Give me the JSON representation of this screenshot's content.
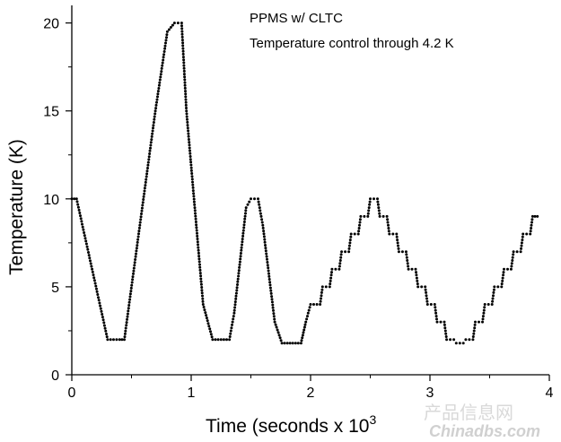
{
  "chart_data": {
    "type": "scatter",
    "title": "",
    "xlabel": "Time (seconds x 10",
    "xlabel_superscript": "3",
    "ylabel": "Temperature (K)",
    "xlim": [
      0,
      4
    ],
    "ylim": [
      0,
      21
    ],
    "xticks": [
      "0",
      "1",
      "2",
      "3",
      "4"
    ],
    "yticks": [
      "0",
      "5",
      "10",
      "15",
      "20"
    ],
    "grid": false,
    "legend": "none",
    "annotations": [
      "PPMS w/ CLTC",
      "Temperature control through 4.2 K"
    ],
    "marker_color": "#000000",
    "series": [
      {
        "x": [
          0.0,
          0.04,
          0.3,
          0.4,
          0.44,
          0.7,
          0.8,
          0.86,
          0.92,
          0.96,
          1.1,
          1.18,
          1.32,
          1.36,
          1.46,
          1.5,
          1.56,
          1.6,
          1.7,
          1.76,
          1.92,
          1.96,
          2.0,
          2.08,
          2.1,
          2.16,
          2.18,
          2.24,
          2.26,
          2.32,
          2.34,
          2.4,
          2.42,
          2.48,
          2.5,
          2.56,
          2.58,
          2.64,
          2.66,
          2.72,
          2.74,
          2.8,
          2.82,
          2.88,
          2.9,
          2.96,
          2.98,
          3.04,
          3.06,
          3.12,
          3.14,
          3.2,
          3.22,
          3.28,
          3.3,
          3.36,
          3.38,
          3.44,
          3.46,
          3.52,
          3.54,
          3.6,
          3.62,
          3.68,
          3.7,
          3.76,
          3.78,
          3.84,
          3.86,
          3.9
        ],
        "y": [
          10,
          10,
          2,
          2,
          2,
          15,
          19.5,
          20,
          20,
          15,
          4,
          2,
          2,
          3.5,
          9.5,
          10,
          10,
          8.5,
          3,
          1.8,
          1.8,
          3,
          4,
          4,
          5,
          5,
          6,
          6,
          7,
          7,
          8,
          8,
          9,
          9,
          10,
          10,
          9,
          9,
          8,
          8,
          7,
          7,
          6,
          6,
          5,
          5,
          4,
          4,
          3,
          3,
          2,
          2,
          1.8,
          1.8,
          2,
          2,
          3,
          3,
          4,
          4,
          5,
          5,
          6,
          6,
          7,
          7,
          8,
          8,
          9,
          9
        ]
      }
    ]
  },
  "watermark": {
    "line1": "产品信息网",
    "line2": "Chinadbs.com"
  }
}
